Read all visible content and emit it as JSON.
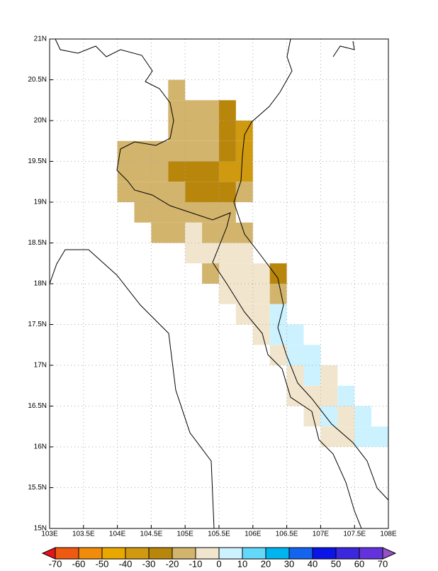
{
  "map": {
    "type": "grid",
    "xlim": [
      103,
      108
    ],
    "ylim": [
      15,
      21
    ],
    "xticks": [
      {
        "value": 103,
        "label": "103E"
      },
      {
        "value": 103.5,
        "label": "103.5E"
      },
      {
        "value": 104,
        "label": "104E"
      },
      {
        "value": 104.5,
        "label": "104.5E"
      },
      {
        "value": 105,
        "label": "105E"
      },
      {
        "value": 105.5,
        "label": "105.5E"
      },
      {
        "value": 106,
        "label": "106E"
      },
      {
        "value": 106.5,
        "label": "106.5E"
      },
      {
        "value": 107,
        "label": "107E"
      },
      {
        "value": 107.5,
        "label": "107.5E"
      },
      {
        "value": 108,
        "label": "108E"
      }
    ],
    "yticks": [
      {
        "value": 15,
        "label": "15N"
      },
      {
        "value": 15.5,
        "label": "15.5N"
      },
      {
        "value": 16,
        "label": "16N"
      },
      {
        "value": 16.5,
        "label": "16.5N"
      },
      {
        "value": 17,
        "label": "17N"
      },
      {
        "value": 17.5,
        "label": "17.5N"
      },
      {
        "value": 18,
        "label": "18N"
      },
      {
        "value": 18.5,
        "label": "18.5N"
      },
      {
        "value": 19,
        "label": "19N"
      },
      {
        "value": 19.5,
        "label": "19.5N"
      },
      {
        "value": 20,
        "label": "20N"
      },
      {
        "value": 20.5,
        "label": "20.5N"
      },
      {
        "value": 21,
        "label": "21N"
      }
    ],
    "grid": true,
    "cell": 0.25,
    "cells": [
      {
        "lat": 20.25,
        "lon": [
          104.75,
          105
        ],
        "value": -15
      },
      {
        "lat": 20,
        "lon": [
          104.75,
          105.5
        ],
        "value": -15
      },
      {
        "lat": 20,
        "lon": [
          105.5,
          105.75
        ],
        "value": -25
      },
      {
        "lat": 19.75,
        "lon": [
          104.75,
          105.5
        ],
        "value": -15
      },
      {
        "lat": 19.75,
        "lon": [
          105.5,
          105.75
        ],
        "value": -25
      },
      {
        "lat": 19.75,
        "lon": [
          105.75,
          106
        ],
        "value": -35
      },
      {
        "lat": 19.5,
        "lon": [
          104,
          105.5
        ],
        "value": -15
      },
      {
        "lat": 19.5,
        "lon": [
          105.5,
          105.75
        ],
        "value": -25
      },
      {
        "lat": 19.5,
        "lon": [
          105.75,
          106
        ],
        "value": -35
      },
      {
        "lat": 19.25,
        "lon": [
          104,
          104.75
        ],
        "value": -15
      },
      {
        "lat": 19.25,
        "lon": [
          104.75,
          105.5
        ],
        "value": -25
      },
      {
        "lat": 19.25,
        "lon": [
          105.5,
          106
        ],
        "value": -35
      },
      {
        "lat": 19,
        "lon": [
          104,
          105
        ],
        "value": -15
      },
      {
        "lat": 19,
        "lon": [
          105,
          105.75
        ],
        "value": -25
      },
      {
        "lat": 19,
        "lon": [
          105.75,
          106
        ],
        "value": -15
      },
      {
        "lat": 18.75,
        "lon": [
          104.25,
          105.75
        ],
        "value": -15
      },
      {
        "lat": 18.5,
        "lon": [
          104.5,
          105
        ],
        "value": -15
      },
      {
        "lat": 18.5,
        "lon": [
          105,
          105.25
        ],
        "value": -5
      },
      {
        "lat": 18.5,
        "lon": [
          105.25,
          106
        ],
        "value": -15
      },
      {
        "lat": 18.25,
        "lon": [
          105,
          106
        ],
        "value": -5
      },
      {
        "lat": 18,
        "lon": [
          105.25,
          105.5
        ],
        "value": -15
      },
      {
        "lat": 18,
        "lon": [
          105.5,
          106.25
        ],
        "value": -5
      },
      {
        "lat": 18,
        "lon": [
          106.25,
          106.5
        ],
        "value": -25
      },
      {
        "lat": 17.75,
        "lon": [
          105.5,
          106.25
        ],
        "value": -5
      },
      {
        "lat": 17.75,
        "lon": [
          106.25,
          106.5
        ],
        "value": -15
      },
      {
        "lat": 17.5,
        "lon": [
          105.75,
          106.25
        ],
        "value": -5
      },
      {
        "lat": 17.5,
        "lon": [
          106.25,
          106.5
        ],
        "value": 5
      },
      {
        "lat": 17.25,
        "lon": [
          106,
          106.25
        ],
        "value": -5
      },
      {
        "lat": 17.25,
        "lon": [
          106.25,
          106.75
        ],
        "value": 5
      },
      {
        "lat": 17,
        "lon": [
          106.25,
          106.5
        ],
        "value": -5
      },
      {
        "lat": 17,
        "lon": [
          106.5,
          107
        ],
        "value": 5
      },
      {
        "lat": 16.75,
        "lon": [
          106.5,
          106.75
        ],
        "value": -5
      },
      {
        "lat": 16.75,
        "lon": [
          106.75,
          107
        ],
        "value": 5
      },
      {
        "lat": 16.75,
        "lon": [
          107,
          107.25
        ],
        "value": -5
      },
      {
        "lat": 16.5,
        "lon": [
          106.5,
          107.25
        ],
        "value": -5
      },
      {
        "lat": 16.5,
        "lon": [
          107.25,
          107.5
        ],
        "value": 5
      },
      {
        "lat": 16.25,
        "lon": [
          106.75,
          107
        ],
        "value": -5
      },
      {
        "lat": 16.25,
        "lon": [
          107,
          107.25
        ],
        "value": 5
      },
      {
        "lat": 16.25,
        "lon": [
          107.25,
          107.5
        ],
        "value": -5
      },
      {
        "lat": 16.25,
        "lon": [
          107.5,
          107.75
        ],
        "value": 5
      },
      {
        "lat": 16,
        "lon": [
          107,
          107.5
        ],
        "value": -5
      },
      {
        "lat": 16,
        "lon": [
          107.5,
          108
        ],
        "value": 5
      }
    ],
    "colorbar": {
      "levels": [
        -70,
        -60,
        -50,
        -40,
        -30,
        -20,
        -10,
        0,
        10,
        20,
        30,
        40,
        50,
        60,
        70
      ],
      "colors": [
        "#e8141c",
        "#f05a10",
        "#f08c0a",
        "#e8a800",
        "#d09a10",
        "#b8860b",
        "#d2b46c",
        "#f1e6cd",
        "#ccf2ff",
        "#64d8f8",
        "#00b4f0",
        "#1464f0",
        "#0a14e6",
        "#3c28dc",
        "#6432dc",
        "#9650c8"
      ]
    }
  }
}
